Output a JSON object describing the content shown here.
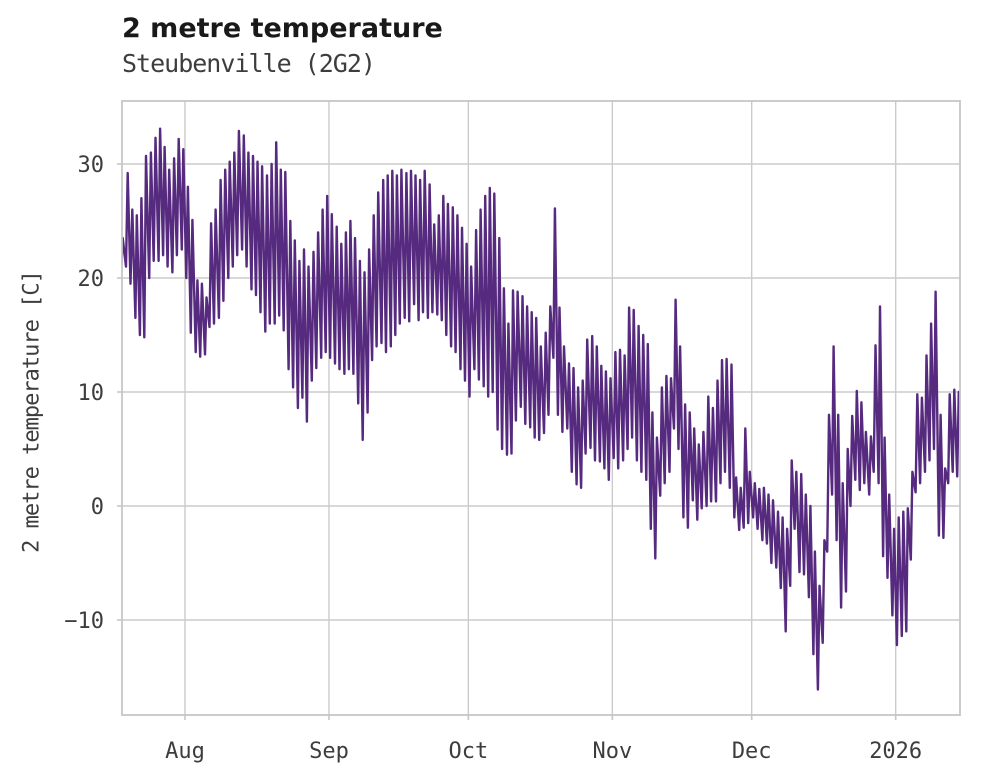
{
  "header": {
    "title": "2 metre temperature",
    "subtitle": "Steubenville (2G2)"
  },
  "chart_data": {
    "type": "line",
    "title": "2 metre temperature",
    "subtitle": "Steubenville (2G2)",
    "xlabel": "",
    "ylabel": "2 metre temperature [C]",
    "grid": true,
    "legend": "none",
    "background": "#ffffff",
    "line_color": "#562a7e",
    "grid_color": "#cbcbcb",
    "spine_color": "#c6c6c6",
    "tick_text_color": "#3d3d3d",
    "ylim": [
      -18.3,
      35.5
    ],
    "yticks": [
      {
        "value": 30,
        "label": "30"
      },
      {
        "value": 20,
        "label": "20"
      },
      {
        "value": 10,
        "label": "10"
      },
      {
        "value": 0,
        "label": "0"
      },
      {
        "value": -10,
        "label": "−10"
      }
    ],
    "xticks": [
      {
        "label": "Aug",
        "day": 14
      },
      {
        "label": "Sep",
        "day": 45
      },
      {
        "label": "Oct",
        "day": 75
      },
      {
        "label": "Nov",
        "day": 106
      },
      {
        "label": "Dec",
        "day": 136
      },
      {
        "label": "2026",
        "day": 167
      }
    ],
    "x_span_days": 181,
    "sampling_note": "line oscillates daily between day_min and day_max; day 0 = ~2 weeks before Aug tick",
    "series": [
      {
        "name": "2 metre temperature",
        "day_min": [
          20.5,
          21,
          19.5,
          16.5,
          15,
          14.8,
          20,
          21.5,
          21.5,
          22,
          21,
          20.5,
          22,
          22.5,
          20,
          15.2,
          13.5,
          13.1,
          13.3,
          15.7,
          16,
          16.5,
          18,
          20,
          21,
          22,
          22.5,
          21,
          19,
          18.5,
          17,
          15.3,
          16,
          16,
          16.7,
          15.4,
          12,
          10.4,
          8.6,
          9.5,
          7.4,
          11,
          12.1,
          13,
          13.5,
          13,
          12.5,
          12,
          11.6,
          12,
          11.6,
          9,
          5.8,
          8.2,
          12.8,
          14,
          14.3,
          13.5,
          14,
          15,
          16,
          16.5,
          16.2,
          17.7,
          16.3,
          17,
          16.5,
          17,
          16.8,
          16.3,
          15,
          14,
          13.5,
          12,
          11,
          9.6,
          12,
          11.1,
          10.5,
          9.6,
          10,
          6.7,
          5,
          4.5,
          4.6,
          7.5,
          8.7,
          7.2,
          6.9,
          6,
          5.8,
          6.4,
          8,
          13,
          8,
          6.5,
          6.8,
          3,
          1.9,
          1.6,
          4.6,
          5.1,
          4,
          3.9,
          3.3,
          2.3,
          4.2,
          3.3,
          4,
          5,
          6,
          4,
          3,
          2.3,
          -2,
          -4.6,
          0.9,
          2,
          3,
          6.8,
          5,
          -1,
          -1.9,
          0.5,
          -1.2,
          -0.2,
          0,
          0.4,
          0.4,
          2,
          3,
          1.6,
          -1,
          -2.1,
          -1.9,
          -1.5,
          -1,
          -2,
          -3,
          -3.3,
          -5,
          -5.4,
          -7.2,
          -11,
          -7,
          -2,
          -5.8,
          -6,
          -8,
          -13,
          -16.1,
          -12,
          -4,
          1,
          -3,
          -8.9,
          -7.5,
          0,
          2.3,
          1.4,
          2,
          1,
          3,
          2,
          -4.4,
          -6.3,
          -9.6,
          -12.2,
          -11.4,
          -11,
          -4.7,
          1.2,
          2,
          3,
          4,
          5,
          -2.6,
          -2.8,
          2,
          3,
          2.6
        ],
        "day_max": [
          23.5,
          29.2,
          26,
          25.5,
          27,
          30.7,
          31,
          32.3,
          33.1,
          31.5,
          29.5,
          30.5,
          32.2,
          31.3,
          28,
          25.1,
          19.8,
          19.5,
          18.3,
          24.8,
          26,
          28.6,
          29.5,
          30.2,
          31,
          32.9,
          32.5,
          31,
          30.7,
          30.2,
          29.8,
          29,
          30,
          31.9,
          29.5,
          29.3,
          25,
          23.3,
          21.5,
          22.5,
          21,
          22.3,
          24,
          26,
          27.2,
          25.6,
          24.5,
          23,
          24,
          25,
          23.5,
          21.5,
          20.5,
          22.5,
          25.5,
          27.5,
          28.6,
          29,
          29.4,
          29,
          29.5,
          29.2,
          29.4,
          29,
          28.6,
          29.4,
          28.2,
          24.7,
          25.5,
          27.2,
          26.5,
          26.2,
          25.5,
          24.4,
          23,
          21,
          24.2,
          26,
          27.2,
          27.9,
          27.4,
          23.5,
          19.1,
          16,
          18.9,
          18.8,
          18.4,
          17.5,
          17,
          16.5,
          14,
          15.2,
          17.5,
          26.1,
          17.4,
          14,
          12.5,
          12.1,
          10.4,
          11,
          14.6,
          14.9,
          14,
          12.3,
          11.8,
          11.2,
          13.5,
          13.7,
          13.2,
          17.4,
          17.2,
          15.8,
          15,
          14.2,
          8.2,
          6,
          10.4,
          11.4,
          11.2,
          18.1,
          14,
          8.9,
          8.2,
          6.8,
          5.4,
          6.5,
          9.6,
          8.6,
          11,
          12.8,
          12.9,
          12.4,
          2.5,
          1.6,
          6.8,
          3,
          2,
          1.5,
          1.6,
          1,
          0.5,
          -0.5,
          -1,
          -2,
          4,
          3,
          2.8,
          1,
          0,
          -4,
          -7,
          -3,
          8,
          14,
          8,
          2,
          5,
          7.9,
          10.1,
          9.1,
          6.5,
          6.1,
          14.1,
          17.5,
          6,
          1,
          -2,
          -1,
          -0.5,
          -0.2,
          3,
          9.8,
          9.5,
          13.2,
          16,
          18.8,
          8,
          3.3,
          9.8,
          10.2,
          10
        ]
      }
    ]
  }
}
